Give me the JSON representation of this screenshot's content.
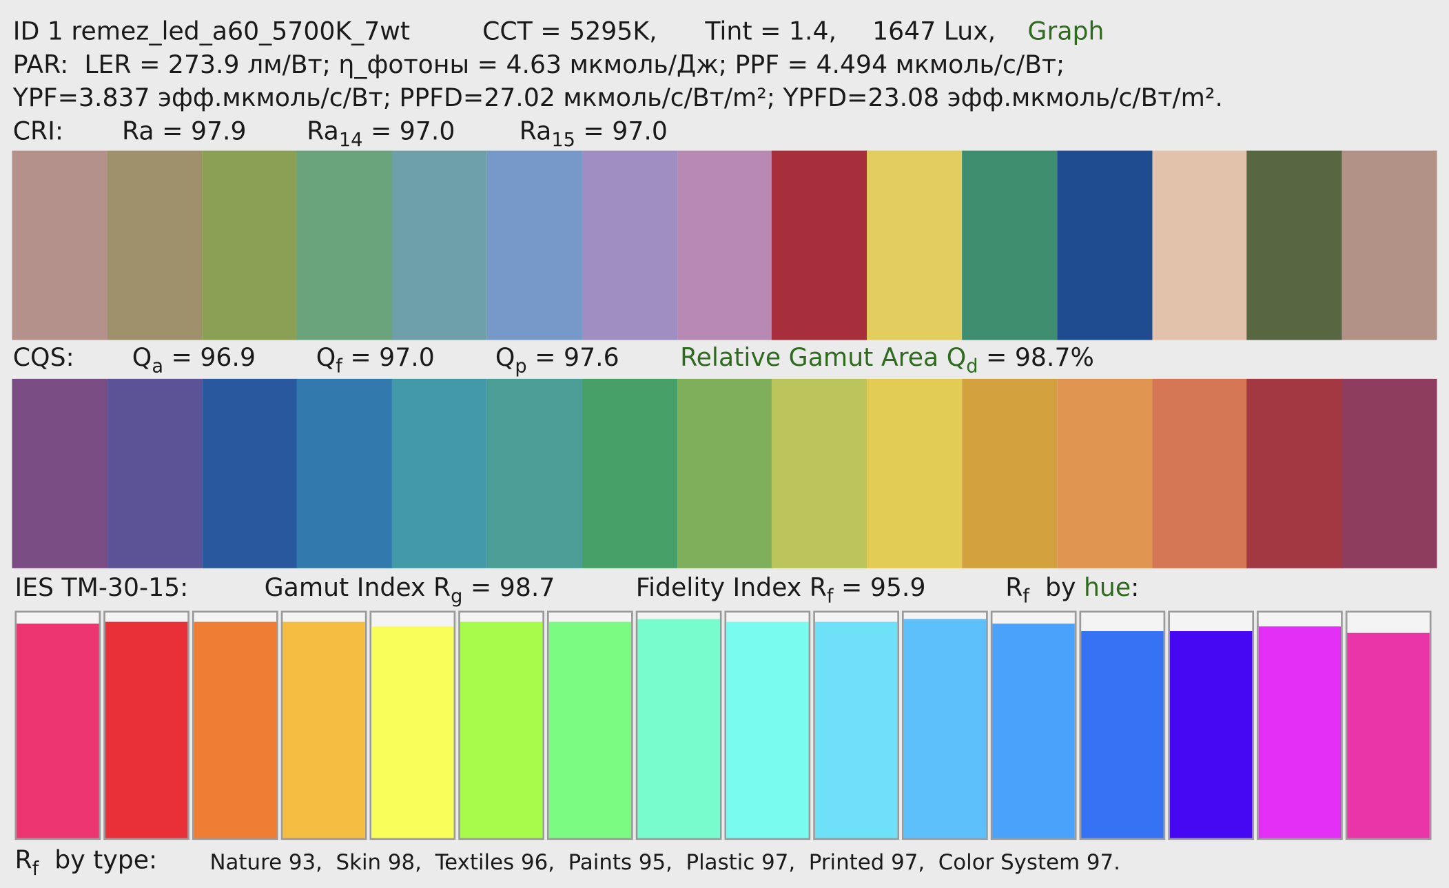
{
  "header": {
    "id": "ID 1 remez_led_a60_5700K_7wt",
    "cct": "CCT = 5295K,",
    "tint": "Tint = 1.4,",
    "lux": "1647 Lux,",
    "graph_link": "Graph"
  },
  "par": {
    "line1": "PAR:  LER = 273.9 лм/Вт; η_фотоны = 4.63 мкмоль/Дж; PPF = 4.494 мкмоль/с/Вт;",
    "line2": "YPF=3.837 эфф.мкмоль/с/Вт; PPFD=27.02 мкмоль/с/Вт/m²; YPFD=23.08 эфф.мкмоль/с/Вт/m²."
  },
  "cri": {
    "label": "CRI:",
    "ra": "Ra = 97.9",
    "ra14": {
      "symbol": "Ra",
      "sub": "14",
      "value": "= 97.0"
    },
    "ra15": {
      "symbol": "Ra",
      "sub": "15",
      "value": "= 97.0"
    }
  },
  "cqs": {
    "label": "CQS:",
    "qa": {
      "symbol": "Q",
      "sub": "a",
      "value": "= 96.9"
    },
    "qf": {
      "symbol": "Q",
      "sub": "f",
      "value": "= 97.0"
    },
    "qp": {
      "symbol": "Q",
      "sub": "p",
      "value": "= 97.6"
    },
    "gamut": {
      "symbol": "Relative Gamut Area Q",
      "sub": "d",
      "value": "= 98.7%"
    }
  },
  "tm30": {
    "label": "IES TM-30-15:",
    "rg": {
      "symbol": "Gamut Index R",
      "sub": "g",
      "value": "= 98.7"
    },
    "rf": {
      "symbol": "Fidelity Index R",
      "sub": "f",
      "value": "= 95.9"
    },
    "by_hue": {
      "symbol": "R",
      "sub": "f",
      "text": "by",
      "link": "hue",
      "colon": ":"
    }
  },
  "rf_by_type": {
    "symbol": "R",
    "sub": "f",
    "label": "by type:",
    "values": "Nature 93,  Skin 98,  Textiles 96,  Paints 95,  Plastic 97,  Printed 97,  Color System 97."
  }
}
